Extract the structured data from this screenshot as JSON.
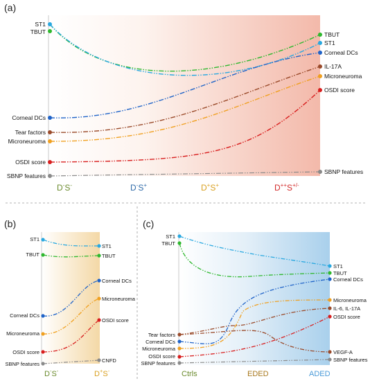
{
  "panels": {
    "a": {
      "letter": "(a)",
      "stages": [
        {
          "base": "D",
          "sup1": "-",
          "mid": "S",
          "sup2": "-",
          "color": "#6a8a2c"
        },
        {
          "base": "D",
          "sup1": "-",
          "mid": "S",
          "sup2": "+",
          "color": "#2e6aa8"
        },
        {
          "base": "D",
          "sup1": "+",
          "mid": "S",
          "sup2": "+",
          "color": "#d9a020"
        },
        {
          "base": "D",
          "sup1": "++",
          "mid": "S",
          "sup2": "+/-",
          "color": "#d22a2a"
        }
      ],
      "left_labels": [
        "ST1",
        "TBUT",
        "Corneal DCs",
        "Tear factors",
        "Microneuroma",
        "OSDI score",
        "SBNP features"
      ],
      "right_labels": [
        "TBUT",
        "ST1",
        "Corneal DCs",
        "IL-17A",
        "Microneuroma",
        "OSDI score",
        "SBNP features"
      ]
    },
    "b": {
      "letter": "(b)",
      "stages": [
        {
          "base": "D",
          "sup1": "-",
          "mid": "S",
          "sup2": "-",
          "color": "#6a8a2c"
        },
        {
          "base": "D",
          "sup1": "+",
          "mid": "S",
          "sup2": "-",
          "color": "#d9a020"
        }
      ],
      "left_labels": [
        "ST1",
        "TBUT",
        "Corneal DCs",
        "Microneuroma",
        "OSDI score",
        "SBNP features"
      ],
      "right_labels": [
        "ST1",
        "TBUT",
        "Corneal DCs",
        "Microneuroma",
        "OSDI score",
        "CNFD"
      ]
    },
    "c": {
      "letter": "(c)",
      "stages": [
        {
          "text": "Ctrls",
          "color": "#6a8a2c"
        },
        {
          "text": "EDED",
          "color": "#a8781e"
        },
        {
          "text": "ADED",
          "color": "#4a9ad8"
        }
      ],
      "left_labels": [
        "ST1",
        "TBUT",
        "Tear factors",
        "Corneal DCs",
        "Microneuroma",
        "OSDI score",
        "SBNP features"
      ],
      "right_labels": [
        "ST1",
        "TBUT",
        "Corneal DCs",
        "Microneuroma",
        "IL-6, IL-17A",
        "OSDI score",
        "VEGF-A",
        "SBNP features"
      ]
    }
  },
  "colors": {
    "cyan": "#29a8e0",
    "green": "#2eb82e",
    "blue": "#1f63c8",
    "brown": "#9a4a2a",
    "orange": "#f0a020",
    "red": "#d81e1e",
    "gray": "#8a8a8a"
  }
}
